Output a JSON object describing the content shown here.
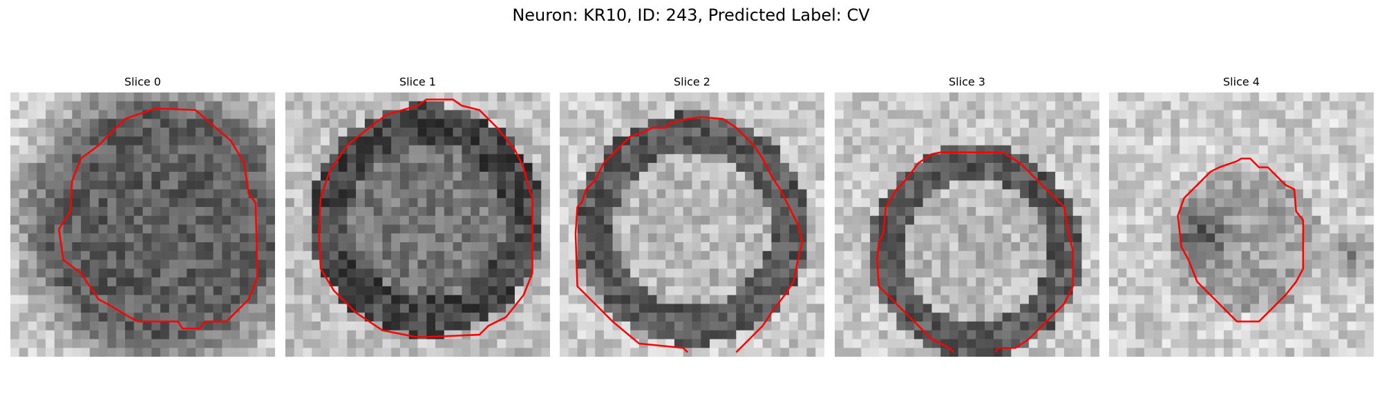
{
  "figure": {
    "title": "Neuron: KR10, ID: 243, Predicted Label: CV",
    "contour_color": "#ff0000"
  },
  "slices": [
    {
      "title": "Slice 0",
      "pattern": "dark-disk"
    },
    {
      "title": "Slice 1",
      "pattern": "dark-ring-light-core"
    },
    {
      "title": "Slice 2",
      "pattern": "dark-ring-light-core"
    },
    {
      "title": "Slice 3",
      "pattern": "dark-ring-light-core"
    },
    {
      "title": "Slice 4",
      "pattern": "small-dark-blob"
    }
  ]
}
